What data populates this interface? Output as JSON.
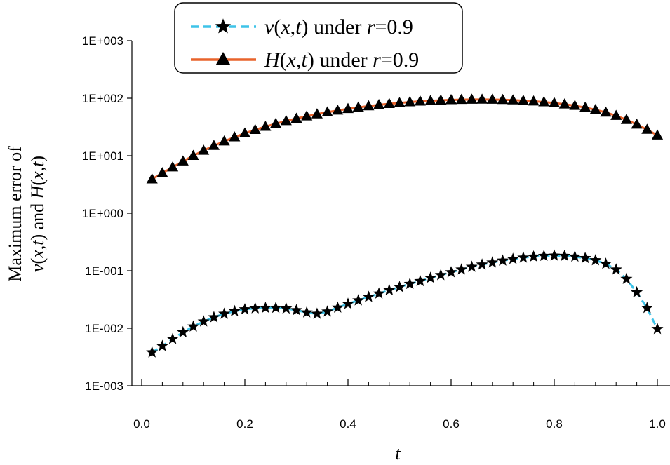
{
  "chart_data": {
    "type": "line",
    "title": "",
    "xlabel": "t",
    "ylabel_line1": "Maximum error of",
    "ylabel_line2": "v(x,t) and H(x,t)",
    "yscale": "log",
    "xlim": [
      0.0,
      1.0
    ],
    "ylim": [
      0.001,
      1000
    ],
    "x_ticks": [
      "0.0",
      "0.2",
      "0.4",
      "0.6",
      "0.8",
      "1.0"
    ],
    "y_ticks": [
      "1E-003",
      "1E-002",
      "1E-001",
      "1E+000",
      "1E+001",
      "1E+002",
      "1E+003"
    ],
    "legend_position": "top-center",
    "x": [
      0.02,
      0.04,
      0.06,
      0.08,
      0.1,
      0.12,
      0.14,
      0.16,
      0.18,
      0.2,
      0.22,
      0.24,
      0.26,
      0.28,
      0.3,
      0.32,
      0.34,
      0.36,
      0.38,
      0.4,
      0.42,
      0.44,
      0.46,
      0.48,
      0.5,
      0.52,
      0.54,
      0.56,
      0.58,
      0.6,
      0.62,
      0.64,
      0.66,
      0.68,
      0.7,
      0.72,
      0.74,
      0.76,
      0.78,
      0.8,
      0.82,
      0.84,
      0.86,
      0.88,
      0.9,
      0.92,
      0.94,
      0.96,
      0.98,
      1.0
    ],
    "series": [
      {
        "name": "v(x,t) under r=0.9",
        "legend_parts": {
          "v": "v",
          "open": "(",
          "x": "x",
          "comma": ",",
          "t": "t",
          "close": ")",
          "under": " under ",
          "r": "r",
          "eq": "=0.9"
        },
        "line_style": "dashed",
        "color": "#3ec3e8",
        "marker": "star",
        "values": [
          0.0038,
          0.0049,
          0.0065,
          0.0085,
          0.0107,
          0.0131,
          0.0155,
          0.0178,
          0.0198,
          0.0213,
          0.0222,
          0.0226,
          0.0226,
          0.022,
          0.0206,
          0.0188,
          0.0178,
          0.0195,
          0.0228,
          0.0265,
          0.0305,
          0.035,
          0.04,
          0.046,
          0.052,
          0.059,
          0.066,
          0.075,
          0.084,
          0.094,
          0.105,
          0.117,
          0.128,
          0.139,
          0.15,
          0.16,
          0.169,
          0.176,
          0.181,
          0.183,
          0.181,
          0.176,
          0.166,
          0.152,
          0.132,
          0.105,
          0.072,
          0.042,
          0.0225,
          0.0097
        ]
      },
      {
        "name": "H(x,t) under r=0.9",
        "legend_parts": {
          "v": "H",
          "open": "(",
          "x": "x",
          "comma": ",",
          "t": "t",
          "close": ")",
          "under": " under ",
          "r": "r",
          "eq": "=0.9"
        },
        "line_style": "solid",
        "color": "#e8632c",
        "marker": "triangle",
        "values": [
          3.9,
          5.0,
          6.3,
          8.0,
          10.0,
          12.3,
          14.9,
          17.8,
          21.0,
          24.5,
          28.2,
          32.0,
          36.0,
          40.2,
          44.3,
          48.6,
          52.8,
          57.0,
          61.2,
          65.3,
          69.2,
          72.9,
          76.5,
          79.8,
          82.8,
          85.6,
          88.0,
          90.0,
          91.8,
          93.2,
          94.2,
          94.8,
          95.0,
          94.6,
          93.8,
          92.4,
          90.6,
          88.4,
          85.6,
          82.4,
          78.5,
          74.0,
          68.8,
          63.0,
          56.6,
          49.6,
          42.1,
          35.0,
          28.4,
          22.6
        ]
      }
    ]
  }
}
